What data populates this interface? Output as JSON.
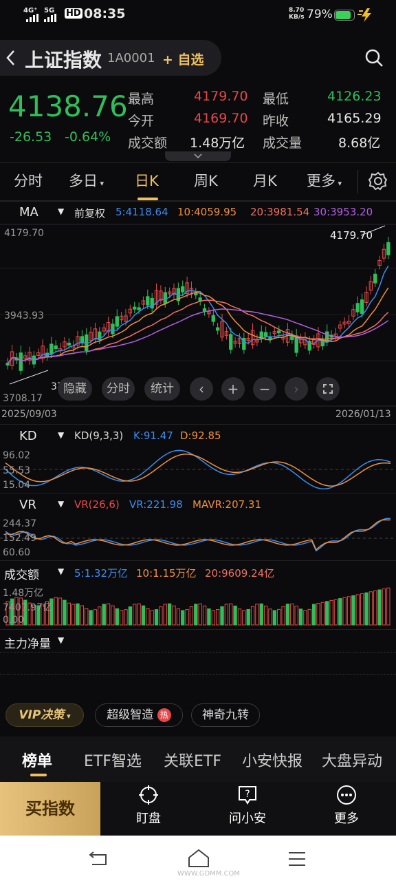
{
  "status": {
    "net1": "4G⁺",
    "net2": "5G",
    "time": "08:35",
    "speed_top": "8.70",
    "speed_bottom": "KB/s",
    "battery": "79%"
  },
  "header": {
    "title": "上证指数",
    "code": "1A0001",
    "add_label": "+ 自选"
  },
  "quote": {
    "price": "4138.76",
    "change": "-26.53",
    "change_pct": "-0.64%",
    "high_label": "最高",
    "high": "4179.70",
    "low_label": "最低",
    "low": "4126.23",
    "open_label": "今开",
    "open": "4169.70",
    "prev_label": "昨收",
    "prev": "4165.29",
    "amount_label": "成交额",
    "amount": "1.48万亿",
    "volume_label": "成交量",
    "volume": "8.68亿"
  },
  "tabs": [
    {
      "label": "分时"
    },
    {
      "label": "多日"
    },
    {
      "label": "日K"
    },
    {
      "label": "周K"
    },
    {
      "label": "月K"
    },
    {
      "label": "更多"
    }
  ],
  "ma": {
    "label": "MA",
    "adjust": "前复权",
    "ma5": "5:4118.64",
    "ma10": "10:4059.95",
    "ma20": "20:3981.54",
    "ma30": "30:3953.20",
    "axis_top": "4179.70",
    "axis_mid": "3943.93",
    "axis_bot": "3708.17",
    "peak_label": "4179.70",
    "low_label": "3708.17",
    "date_start": "2025/09/03",
    "date_end": "2026/01/13"
  },
  "controls": {
    "hide": "隐藏",
    "fenshi": "分时",
    "stats": "统计"
  },
  "kd": {
    "label": "KD",
    "params": "KD(9,3,3)",
    "k": "K:91.47",
    "d": "D:92.85",
    "axis1": "96.02",
    "axis2": "55.53",
    "axis3": "15.04"
  },
  "vr": {
    "label": "VR",
    "params": "VR(26,6)",
    "vr": "VR:221.98",
    "mavr": "MAVR:207.31",
    "axis1": "244.37",
    "axis2": "152.49",
    "axis3": "60.60"
  },
  "amt": {
    "label": "成交额",
    "m5": "5:1.32万亿",
    "m10": "10:1.15万亿",
    "m20": "20:9609.24亿",
    "axis1": "1.48万亿",
    "axis2": "7407.97亿",
    "axis3": "0.00"
  },
  "flow": {
    "label": "主力净量"
  },
  "chips": {
    "vip": "VIP决策",
    "chip1": "超级智造",
    "hot": "热",
    "chip2": "神奇九转"
  },
  "bottom_tabs": [
    "榜单",
    "ETF智选",
    "关联ETF",
    "小安快报",
    "大盘异动"
  ],
  "nav": {
    "buy": "买指数",
    "item1": "盯盘",
    "item2": "问小安",
    "item3": "更多"
  },
  "watermark": "WWW.GDMM.COM",
  "colors": {
    "up": "#e84848",
    "down": "#2fbf5a",
    "accent": "#f0c060"
  }
}
